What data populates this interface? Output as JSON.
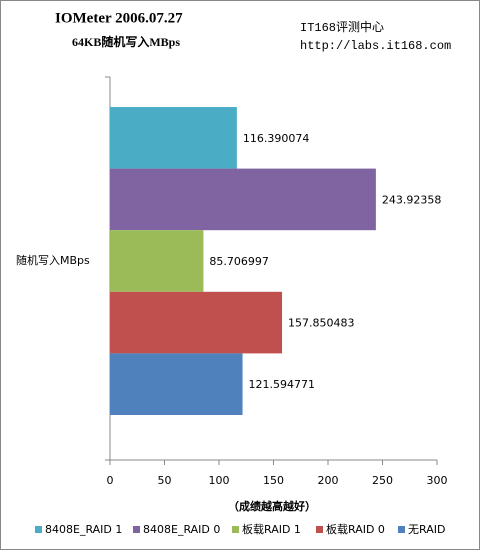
{
  "chart_data": {
    "type": "hbar",
    "title": "IOMeter 2006.07.27",
    "subtitle": "64KB随机写入MBps",
    "annotations": [
      "IT168评测中心",
      "http://labs.it168.com"
    ],
    "x_label": "（成绩越高越好）",
    "categories": [
      "随机写入MBps"
    ],
    "series": [
      {
        "name": "8408E_RAID 1",
        "color": "#4bacc6",
        "values": [
          116.390074
        ]
      },
      {
        "name": "8408E_RAID 0",
        "color": "#8064a2",
        "values": [
          243.92358
        ]
      },
      {
        "name": "板载RAID 1",
        "color": "#9bbb59",
        "values": [
          85.706997
        ]
      },
      {
        "name": "板载RAID 0",
        "color": "#c0504d",
        "values": [
          157.850483
        ]
      },
      {
        "name": "无RAID",
        "color": "#4f81bd",
        "values": [
          121.594771
        ]
      }
    ],
    "xlim": [
      0,
      300
    ],
    "xticks": [
      0,
      50,
      100,
      150,
      200,
      250,
      300
    ],
    "grid": false,
    "legend": "bottom"
  }
}
